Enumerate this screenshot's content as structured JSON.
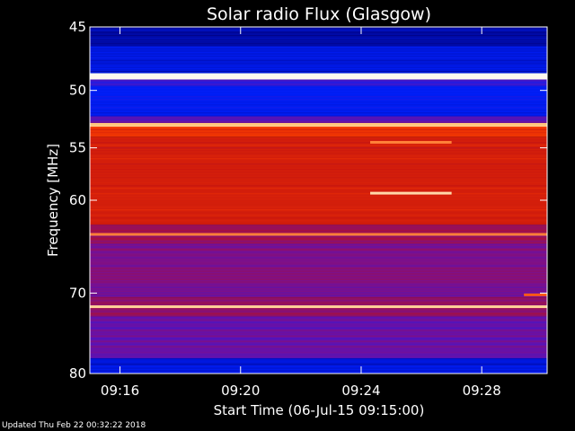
{
  "chart_data": {
    "type": "heatmap",
    "title": "Solar radio Flux (Glasgow)",
    "xlabel": "Start Time (06-Jul-15 09:15:00)",
    "ylabel": "Frequency [MHz]",
    "x_start": "09:15:00",
    "x_end": "09:30:10",
    "xlim_minutes": [
      0,
      15.17
    ],
    "xticks": [
      {
        "label": "09:16",
        "minute": 1
      },
      {
        "label": "09:20",
        "minute": 5
      },
      {
        "label": "09:24",
        "minute": 9
      },
      {
        "label": "09:28",
        "minute": 13
      }
    ],
    "ylim": [
      45,
      80
    ],
    "y_scale": "log",
    "y_reversed": true,
    "yticks": [
      45,
      50,
      55,
      60,
      70,
      80
    ],
    "colormap": [
      "#000080",
      "#0020ff",
      "#7010a0",
      "#c01010",
      "#ff4000",
      "#ffc070",
      "#ffffff"
    ],
    "bands": [
      {
        "f_low": 45.0,
        "f_high": 46.5,
        "level": 0.05
      },
      {
        "f_low": 46.5,
        "f_high": 48.6,
        "level": 0.12
      },
      {
        "f_low": 48.6,
        "f_high": 49.1,
        "level": 0.98
      },
      {
        "f_low": 49.1,
        "f_high": 49.6,
        "level": 0.25
      },
      {
        "f_low": 49.6,
        "f_high": 52.2,
        "level": 0.15
      },
      {
        "f_low": 52.2,
        "f_high": 52.8,
        "level": 0.3
      },
      {
        "f_low": 52.8,
        "f_high": 53.1,
        "level": 0.85
      },
      {
        "f_low": 53.1,
        "f_high": 54.0,
        "level": 0.62
      },
      {
        "f_low": 54.0,
        "f_high": 62.5,
        "level": 0.55
      },
      {
        "f_low": 62.5,
        "f_high": 64.5,
        "level": 0.42
      },
      {
        "f_low": 64.5,
        "f_high": 70.5,
        "level": 0.36
      },
      {
        "f_low": 70.5,
        "f_high": 72.8,
        "level": 0.4
      },
      {
        "f_low": 72.8,
        "f_high": 78.0,
        "level": 0.32
      },
      {
        "f_low": 78.0,
        "f_high": 80.0,
        "level": 0.12
      }
    ],
    "bright_lines": [
      {
        "freq": 48.8,
        "level": 0.98
      },
      {
        "freq": 52.9,
        "level": 0.85
      },
      {
        "freq": 63.5,
        "level": 0.75
      },
      {
        "freq": 71.6,
        "level": 0.88
      }
    ],
    "features": [
      {
        "freq": 54.5,
        "t_start": 9.3,
        "t_end": 12.0,
        "level": 0.75
      },
      {
        "freq": 59.3,
        "t_start": 9.3,
        "t_end": 12.0,
        "level": 0.9
      },
      {
        "freq": 70.2,
        "t_start": 14.4,
        "t_end": 15.17,
        "level": 0.7
      }
    ]
  },
  "footer": "Updated Thu Feb 22 00:32:22 2018"
}
